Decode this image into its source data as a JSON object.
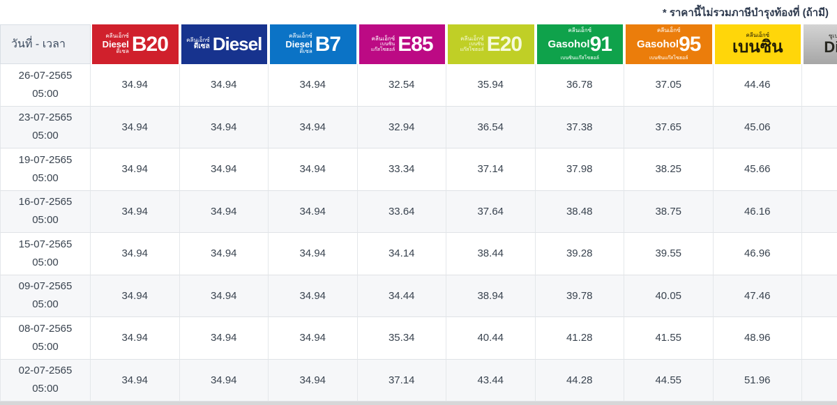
{
  "note": "* ราคานี้ไม่รวมภาษีบำรุงท้องที่ (ถ้ามี)",
  "table": {
    "date_header": "วันที่ - เวลา",
    "columns": [
      {
        "name": "diesel-b20",
        "bg": "#D0202C",
        "fg": "#FFFFFF",
        "line1": "คลีนเอ็กซ์",
        "line2": "Diesel",
        "line3": "ดีเซล",
        "big": "B20"
      },
      {
        "name": "diesel",
        "bg": "#17338E",
        "fg": "#FFFFFF",
        "line1": "คลีนเอ็กซ์",
        "line2": "ดีเซล",
        "big": "Diesel"
      },
      {
        "name": "diesel-b7",
        "bg": "#0B73C6",
        "fg": "#FFFFFF",
        "line1": "คลีนเอ็กซ์",
        "line2": "Diesel",
        "line3": "ดีเซล",
        "big": "B7"
      },
      {
        "name": "gasohol-e85",
        "bg": "#BC0A84",
        "fg": "#FFFFFF",
        "line1": "คลีนเอ็กซ์",
        "line2": "เบนซิน",
        "line3": "แก๊สโซฮอล์",
        "big": "E85"
      },
      {
        "name": "gasohol-e20",
        "bg": "#C0CF26",
        "fg": "#F6FADC",
        "line1": "คลีนเอ็กซ์",
        "line2": "เบนซิน",
        "line3": "แก๊สโซฮอล์",
        "big": "E20"
      },
      {
        "name": "gasohol-91",
        "bg": "#0FA24B",
        "fg": "#FFFFFF",
        "line1": "คลีนเอ็กซ์",
        "brand": "Gasohol",
        "big": "91",
        "line3": "เบนซินแก๊สโซฮอล์"
      },
      {
        "name": "gasohol-95",
        "bg": "#EB7D0B",
        "fg": "#FFFFFF",
        "line1": "คลีนเอ็กซ์",
        "brand": "Gasohol",
        "big": "95",
        "line3": "เบนซินแก๊สโซฮอล์"
      },
      {
        "name": "benzine",
        "bg": "#FFD60A",
        "fg": "#211D06",
        "line1": "คลีนเอ็กซ์",
        "big": "เบนซิน"
      },
      {
        "name": "super-diesel",
        "bg_gradient": [
          "#D4D4D4",
          "#A6A6A6"
        ],
        "fg": "#26261F",
        "line1": "ซูเปอร์เพาเวอร์",
        "big": "Diesel"
      }
    ],
    "rows": [
      {
        "date": "26-07-2565",
        "time": "05:00",
        "prices": [
          "34.94",
          "34.94",
          "34.94",
          "32.54",
          "35.94",
          "36.78",
          "37.05",
          "44.46",
          ""
        ]
      },
      {
        "date": "23-07-2565",
        "time": "05:00",
        "prices": [
          "34.94",
          "34.94",
          "34.94",
          "32.94",
          "36.54",
          "37.38",
          "37.65",
          "45.06",
          ""
        ]
      },
      {
        "date": "19-07-2565",
        "time": "05:00",
        "prices": [
          "34.94",
          "34.94",
          "34.94",
          "33.34",
          "37.14",
          "37.98",
          "38.25",
          "45.66",
          ""
        ]
      },
      {
        "date": "16-07-2565",
        "time": "05:00",
        "prices": [
          "34.94",
          "34.94",
          "34.94",
          "33.64",
          "37.64",
          "38.48",
          "38.75",
          "46.16",
          ""
        ]
      },
      {
        "date": "15-07-2565",
        "time": "05:00",
        "prices": [
          "34.94",
          "34.94",
          "34.94",
          "34.14",
          "38.44",
          "39.28",
          "39.55",
          "46.96",
          ""
        ]
      },
      {
        "date": "09-07-2565",
        "time": "05:00",
        "prices": [
          "34.94",
          "34.94",
          "34.94",
          "34.44",
          "38.94",
          "39.78",
          "40.05",
          "47.46",
          ""
        ]
      },
      {
        "date": "08-07-2565",
        "time": "05:00",
        "prices": [
          "34.94",
          "34.94",
          "34.94",
          "35.34",
          "40.44",
          "41.28",
          "41.55",
          "48.96",
          ""
        ]
      },
      {
        "date": "02-07-2565",
        "time": "05:00",
        "prices": [
          "34.94",
          "34.94",
          "34.94",
          "37.14",
          "43.44",
          "44.28",
          "44.55",
          "51.96",
          ""
        ]
      }
    ]
  }
}
